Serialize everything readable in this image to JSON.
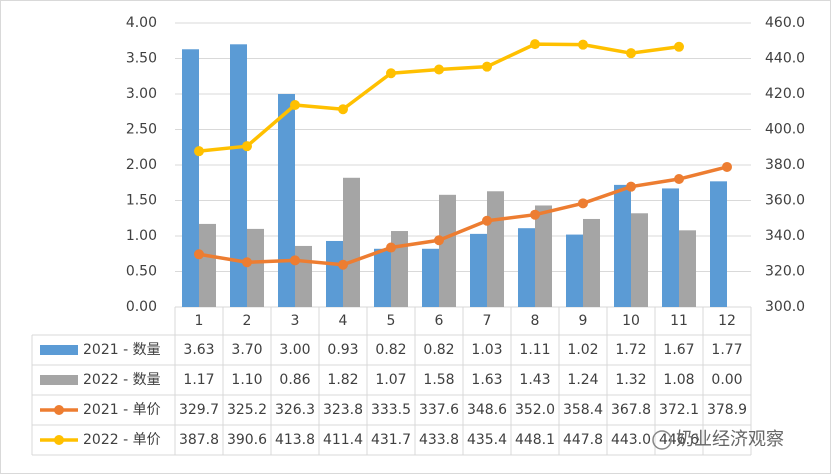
{
  "chart_data": {
    "type": "bar_line_table",
    "categories": [
      "1",
      "2",
      "3",
      "4",
      "5",
      "6",
      "7",
      "8",
      "9",
      "10",
      "11",
      "12"
    ],
    "series": [
      {
        "name": "2021 - 数量",
        "color": "#5b9bd5",
        "kind": "bar",
        "axis": "y",
        "values": [
          3.63,
          3.7,
          3.0,
          0.93,
          0.82,
          0.82,
          1.03,
          1.11,
          1.02,
          1.72,
          1.67,
          1.77
        ],
        "value_labels": [
          "3.63",
          "3.70",
          "3.00",
          "0.93",
          "0.82",
          "0.82",
          "1.03",
          "1.11",
          "1.02",
          "1.72",
          "1.67",
          "1.77"
        ]
      },
      {
        "name": "2022 - 数量",
        "color": "#a5a5a5",
        "kind": "bar",
        "axis": "y",
        "values": [
          1.17,
          1.1,
          0.86,
          1.82,
          1.07,
          1.58,
          1.63,
          1.43,
          1.24,
          1.32,
          1.08,
          0.0
        ],
        "value_labels": [
          "1.17",
          "1.10",
          "0.86",
          "1.82",
          "1.07",
          "1.58",
          "1.63",
          "1.43",
          "1.24",
          "1.32",
          "1.08",
          "0.00"
        ]
      },
      {
        "name": "2021 - 单价",
        "color": "#ed7d31",
        "kind": "line",
        "axis": "y2",
        "values": [
          329.7,
          325.2,
          326.3,
          323.8,
          333.5,
          337.6,
          348.6,
          352.0,
          358.4,
          367.8,
          372.1,
          378.9
        ],
        "value_labels": [
          "329.7",
          "325.2",
          "326.3",
          "323.8",
          "333.5",
          "337.6",
          "348.6",
          "352.0",
          "358.4",
          "367.8",
          "372.1",
          "378.9"
        ]
      },
      {
        "name": "2022 - 单价",
        "color": "#ffc000",
        "kind": "line",
        "axis": "y2",
        "values": [
          387.8,
          390.6,
          413.8,
          411.4,
          431.7,
          433.8,
          435.4,
          448.1,
          447.8,
          443.0,
          446.6,
          null
        ],
        "value_labels": [
          "387.8",
          "390.6",
          "413.8",
          "411.4",
          "431.7",
          "433.8",
          "435.4",
          "448.1",
          "447.8",
          "443.0",
          "446.6",
          null
        ]
      }
    ],
    "ylim": [
      0,
      4
    ],
    "yticks": [
      {
        "value": 0,
        "label": "0.00"
      },
      {
        "value": 0.5,
        "label": "0.50"
      },
      {
        "value": 1,
        "label": "1.00"
      },
      {
        "value": 1.5,
        "label": "1.50"
      },
      {
        "value": 2,
        "label": "2.00"
      },
      {
        "value": 2.5,
        "label": "2.50"
      },
      {
        "value": 3,
        "label": "3.00"
      },
      {
        "value": 3.5,
        "label": "3.50"
      },
      {
        "value": 4,
        "label": "4.00"
      }
    ],
    "y2lim": [
      300,
      460
    ],
    "y2ticks": [
      {
        "value": 300,
        "label": "300.0"
      },
      {
        "value": 320,
        "label": "320.0"
      },
      {
        "value": 340,
        "label": "340.0"
      },
      {
        "value": 360,
        "label": "360.0"
      },
      {
        "value": 380,
        "label": "380.0"
      },
      {
        "value": 400,
        "label": "400.0"
      },
      {
        "value": 420,
        "label": "420.0"
      },
      {
        "value": 440,
        "label": "440.0"
      },
      {
        "value": 460,
        "label": "460.0"
      }
    ],
    "watermark": "奶业经济观察"
  }
}
